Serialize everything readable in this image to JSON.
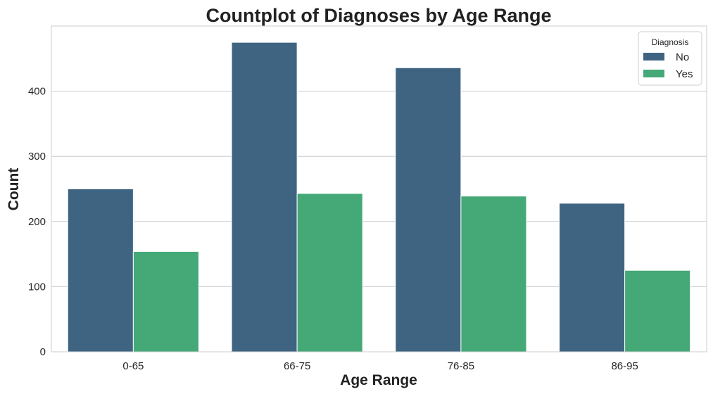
{
  "chart_data": {
    "type": "bar",
    "title": "Countplot of Diagnoses by Age Range",
    "xlabel": "Age Range",
    "ylabel": "Count",
    "categories": [
      "0-65",
      "66-75",
      "76-85",
      "86-95"
    ],
    "series": [
      {
        "name": "No",
        "color": "#3e6482",
        "values": [
          250,
          475,
          436,
          228
        ]
      },
      {
        "name": "Yes",
        "color": "#45a877",
        "values": [
          154,
          243,
          239,
          125
        ]
      }
    ],
    "ylim": [
      0,
      500
    ],
    "yticks": [
      0,
      100,
      200,
      300,
      400
    ],
    "grid": "horizontal",
    "legend": {
      "title": "Diagnosis",
      "placement": "top-right"
    }
  }
}
